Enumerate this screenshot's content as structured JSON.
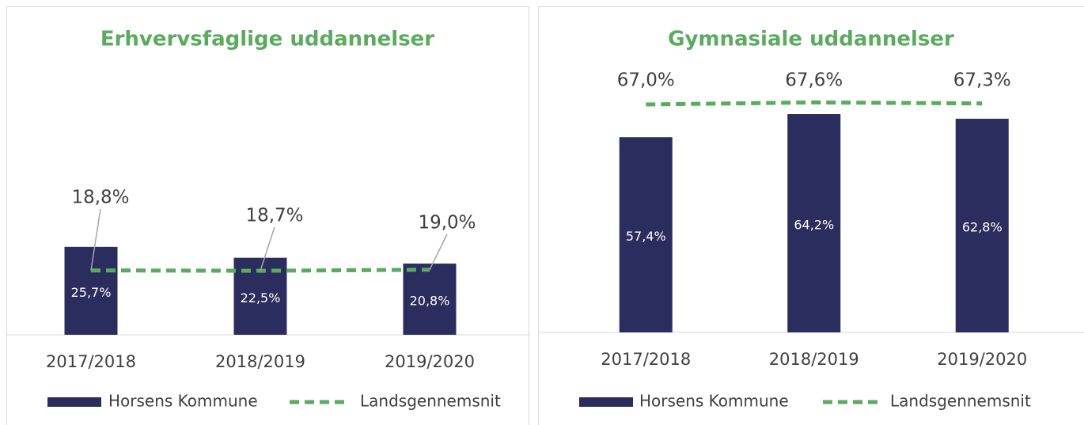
{
  "chart_data": [
    {
      "type": "bar",
      "title": "Erhvervsfaglige uddannelser",
      "categories": [
        "2017/2018",
        "2018/2019",
        "2019/2020"
      ],
      "ylim": [
        0,
        77
      ],
      "series": [
        {
          "name": "Horsens Kommune",
          "color": "#2b2d5e",
          "values": [
            25.7,
            22.5,
            20.8
          ],
          "value_labels": [
            "25,7%",
            "22,5%",
            "20,8%"
          ]
        },
        {
          "name": "Landsgennemsnit",
          "type": "line",
          "dashed": true,
          "color": "#5aab5e",
          "values": [
            18.8,
            18.7,
            19.0
          ],
          "value_labels": [
            "18,8%",
            "18,7%",
            "19,0%"
          ]
        }
      ]
    },
    {
      "type": "bar",
      "title": "Gymnasiale uddannelser",
      "categories": [
        "2017/2018",
        "2018/2019",
        "2019/2020"
      ],
      "ylim": [
        0,
        77
      ],
      "series": [
        {
          "name": "Horsens Kommune",
          "color": "#2b2d5e",
          "values": [
            57.4,
            64.2,
            62.8
          ],
          "value_labels": [
            "57,4%",
            "64,2%",
            "62,8%"
          ]
        },
        {
          "name": "Landsgennemsnit",
          "type": "line",
          "dashed": true,
          "color": "#5aab5e",
          "values": [
            67.0,
            67.6,
            67.3
          ],
          "value_labels": [
            "67,0%",
            "67,6%",
            "67,3%"
          ]
        }
      ]
    }
  ]
}
